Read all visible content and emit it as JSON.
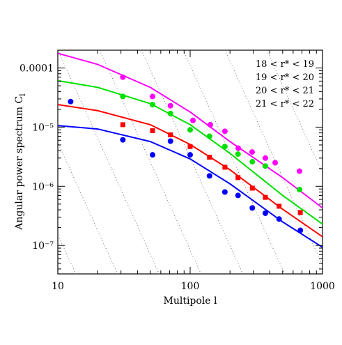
{
  "chart_data": {
    "type": "scatter",
    "xlabel": "Multipole l",
    "ylabel": "Angular power spectrum C",
    "ylabel_sub": "l",
    "xlog": true,
    "ylog": true,
    "xlim": [
      10,
      1000
    ],
    "ylim": [
      3.3e-08,
      0.0002
    ],
    "xticks": [
      10,
      100,
      1000
    ],
    "yticks": [
      0.0001,
      {
        "value": 1e-05,
        "label": "10⁻⁵"
      },
      {
        "value": 1e-06,
        "label": "10⁻⁶"
      },
      {
        "value": 1e-07,
        "label": "10⁻⁷"
      }
    ],
    "legend": "top-right",
    "series": [
      {
        "name": "18 < r* < 19",
        "color": "#ff00ff",
        "marker": "circle",
        "x": [
          31,
          52,
          71,
          105,
          142,
          183,
          231,
          294,
          370,
          439,
          670
        ],
        "values": [
          7e-05,
          3.3e-05,
          2.3e-05,
          1.3e-05,
          1.1e-05,
          8.5e-06,
          4.4e-06,
          3.8e-06,
          3e-06,
          2.5e-06,
          1.8e-06
        ],
        "curve_x": [
          10,
          20,
          50,
          100,
          200,
          500,
          1000
        ],
        "curve": [
          0.000177,
          0.000115,
          4.7e-05,
          1.8e-05,
          5.7e-06,
          1.4e-06,
          4.3e-07
        ]
      },
      {
        "name": "19 < r* < 20",
        "color": "#00e000",
        "marker": "circle",
        "x": [
          31,
          52,
          71,
          100,
          140,
          183,
          230,
          295,
          370,
          670
        ],
        "values": [
          3.3e-05,
          2.4e-05,
          1.7e-05,
          9e-06,
          7e-06,
          4.7e-06,
          3.5e-06,
          2.6e-06,
          2.2e-06,
          8.8e-07
        ],
        "curve_x": [
          10,
          20,
          50,
          100,
          200,
          500,
          1000
        ],
        "curve": [
          6.1e-05,
          4.7e-05,
          2.5e-05,
          1.1e-05,
          3.6e-06,
          7e-07,
          2.3e-07
        ]
      },
      {
        "name": "20 < r* < 21",
        "color": "#ff0000",
        "marker": "square",
        "x": [
          31,
          52,
          71,
          100,
          140,
          183,
          230,
          295,
          370,
          470,
          680
        ],
        "values": [
          1.1e-05,
          8.7e-06,
          7.4e-06,
          4.7e-06,
          3.1e-06,
          2.1e-06,
          1.4e-06,
          9.3e-07,
          6.5e-07,
          4.6e-07,
          3.6e-07
        ],
        "curve_x": [
          10,
          20,
          50,
          100,
          200,
          500,
          1000
        ],
        "curve": [
          2.4e-05,
          1.9e-05,
          1.1e-05,
          5.1e-06,
          1.9e-06,
          4.1e-07,
          1.4e-07
        ]
      },
      {
        "name": "21 < r* < 22",
        "color": "#0000ff",
        "marker": "circle",
        "x": [
          12.5,
          31,
          52,
          71,
          100,
          140,
          183,
          230,
          295,
          370,
          470,
          680
        ],
        "values": [
          2.7e-05,
          6.1e-06,
          3.4e-06,
          5.8e-06,
          3.4e-06,
          1.5e-06,
          8e-07,
          7e-07,
          4.3e-07,
          3.5e-07,
          2.8e-07,
          1.8e-07
        ],
        "curve_x": [
          10,
          20,
          50,
          100,
          200,
          500,
          1000
        ],
        "curve": [
          1.06e-05,
          9.3e-06,
          5.7e-06,
          2.9e-06,
          1.1e-06,
          2.5e-07,
          9.3e-08
        ]
      }
    ]
  }
}
